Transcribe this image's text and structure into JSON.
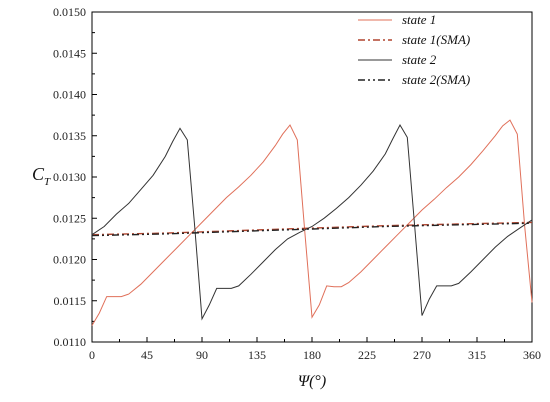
{
  "chart_data": {
    "type": "line",
    "xlabel": "Ψ(°)",
    "ylabel_main": "C",
    "ylabel_sub": "T",
    "xlim": [
      0,
      360
    ],
    "ylim": [
      0.011,
      0.015
    ],
    "x_ticks": [
      "0",
      "45",
      "90",
      "135",
      "180",
      "225",
      "270",
      "315",
      "360"
    ],
    "y_ticks": [
      "0.0110",
      "0.0115",
      "0.0120",
      "0.0125",
      "0.0130",
      "0.0135",
      "0.0140",
      "0.0145",
      "0.0150"
    ],
    "grid": false,
    "legend_position": "top-right",
    "series": [
      {
        "name": "state 1",
        "color": "#e0705a",
        "style": "solid",
        "x": [
          0,
          6,
          12,
          18,
          24,
          30,
          40,
          50,
          60,
          70,
          80,
          90,
          100,
          110,
          120,
          130,
          140,
          150,
          156,
          162,
          168,
          174,
          180,
          186,
          192,
          198,
          204,
          210,
          220,
          230,
          240,
          250,
          260,
          270,
          280,
          290,
          300,
          310,
          320,
          330,
          336,
          342,
          348,
          354,
          360
        ],
        "y": [
          0.0112,
          0.01135,
          0.01155,
          0.01155,
          0.01155,
          0.01158,
          0.0117,
          0.01185,
          0.012,
          0.01215,
          0.0123,
          0.01245,
          0.0126,
          0.01275,
          0.01288,
          0.01302,
          0.01318,
          0.01338,
          0.01352,
          0.01363,
          0.01345,
          0.01235,
          0.0113,
          0.01145,
          0.01168,
          0.01167,
          0.01167,
          0.01172,
          0.01185,
          0.012,
          0.01215,
          0.0123,
          0.01245,
          0.0126,
          0.01273,
          0.01287,
          0.013,
          0.01315,
          0.01332,
          0.0135,
          0.01362,
          0.01369,
          0.01352,
          0.0124,
          0.01148
        ]
      },
      {
        "name": "state 1(SMA)",
        "color": "#b0442e",
        "style": "dashdot",
        "x": [
          0,
          60,
          120,
          180,
          240,
          300,
          360
        ],
        "y": [
          0.0123,
          0.01232,
          0.01235,
          0.01238,
          0.01241,
          0.01243,
          0.01245
        ]
      },
      {
        "name": "state 2",
        "color": "#333333",
        "style": "solid",
        "x": [
          0,
          10,
          20,
          30,
          40,
          50,
          60,
          66,
          72,
          78,
          84,
          90,
          96,
          102,
          108,
          114,
          120,
          130,
          140,
          150,
          160,
          170,
          180,
          190,
          200,
          210,
          220,
          230,
          240,
          246,
          252,
          258,
          264,
          270,
          276,
          282,
          288,
          294,
          300,
          310,
          320,
          330,
          340,
          350,
          360
        ],
        "y": [
          0.0123,
          0.0124,
          0.01255,
          0.01268,
          0.01285,
          0.01302,
          0.01325,
          0.01343,
          0.01359,
          0.01345,
          0.0124,
          0.01128,
          0.01145,
          0.01165,
          0.01165,
          0.01165,
          0.01168,
          0.01182,
          0.01197,
          0.01212,
          0.01225,
          0.01233,
          0.0124,
          0.0125,
          0.01262,
          0.01275,
          0.0129,
          0.01307,
          0.01328,
          0.01346,
          0.01363,
          0.01348,
          0.0124,
          0.01132,
          0.01152,
          0.01168,
          0.01168,
          0.01168,
          0.01171,
          0.01185,
          0.012,
          0.01215,
          0.01228,
          0.01238,
          0.01248
        ]
      },
      {
        "name": "state 2(SMA)",
        "color": "#222222",
        "style": "dashdotdot",
        "x": [
          0,
          60,
          120,
          180,
          240,
          300,
          360
        ],
        "y": [
          0.01229,
          0.01231,
          0.01234,
          0.01237,
          0.0124,
          0.01242,
          0.01244
        ]
      }
    ]
  }
}
